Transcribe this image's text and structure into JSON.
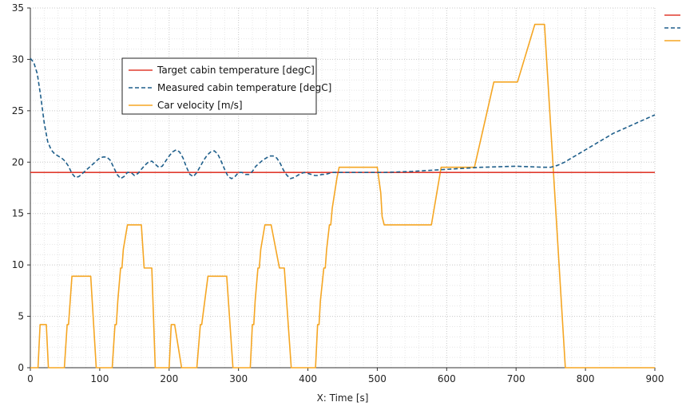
{
  "chart_data": {
    "type": "line",
    "title": "",
    "xlabel": "X: Time [s]",
    "ylabel": "",
    "xlim": [
      0,
      900
    ],
    "ylim": [
      0,
      35
    ],
    "xticks": [
      0,
      100,
      200,
      300,
      400,
      500,
      600,
      700,
      800,
      900
    ],
    "yticks": [
      0,
      5,
      10,
      15,
      20,
      25,
      30,
      35
    ],
    "grid": true,
    "legend_position": "upper-left",
    "series": [
      {
        "name": "Target cabin temperature [degC]",
        "color": "#e03b2e",
        "dash": "solid",
        "x": [
          0,
          900
        ],
        "y": [
          19,
          19
        ]
      },
      {
        "name": "Measured cabin temperature [degC]",
        "color": "#1f5f8b",
        "dash": "dashed",
        "x": [
          0,
          5,
          10,
          15,
          20,
          25,
          30,
          35,
          40,
          45,
          50,
          55,
          60,
          65,
          70,
          75,
          80,
          85,
          90,
          95,
          100,
          105,
          110,
          115,
          120,
          125,
          130,
          135,
          140,
          145,
          150,
          155,
          160,
          165,
          170,
          175,
          180,
          185,
          190,
          195,
          200,
          205,
          210,
          215,
          220,
          225,
          230,
          235,
          240,
          245,
          250,
          255,
          260,
          265,
          270,
          275,
          280,
          285,
          290,
          295,
          300,
          305,
          310,
          315,
          320,
          325,
          330,
          335,
          340,
          345,
          350,
          355,
          360,
          365,
          370,
          375,
          380,
          385,
          390,
          395,
          400,
          405,
          410,
          415,
          420,
          425,
          430,
          435,
          440,
          445,
          450,
          460,
          470,
          480,
          490,
          500,
          510,
          550,
          600,
          650,
          700,
          740,
          750,
          760,
          770,
          780,
          790,
          800,
          810,
          820,
          830,
          840,
          850,
          860,
          870,
          880,
          890,
          900
        ],
        "y": [
          30.1,
          29.7,
          28.6,
          26.4,
          23.8,
          22.0,
          21.2,
          20.8,
          20.6,
          20.4,
          20.1,
          19.6,
          18.9,
          18.5,
          18.6,
          18.9,
          19.2,
          19.5,
          19.8,
          20.1,
          20.4,
          20.5,
          20.5,
          20.2,
          19.5,
          18.8,
          18.4,
          18.6,
          19.0,
          19.0,
          18.7,
          18.9,
          19.3,
          19.7,
          20.0,
          20.1,
          19.8,
          19.5,
          19.6,
          20.1,
          20.6,
          21.0,
          21.2,
          21.0,
          20.4,
          19.5,
          18.8,
          18.6,
          19.0,
          19.6,
          20.2,
          20.7,
          21.0,
          21.1,
          20.8,
          20.1,
          19.3,
          18.6,
          18.4,
          18.6,
          19.0,
          19.0,
          18.8,
          18.8,
          19.1,
          19.6,
          19.9,
          20.2,
          20.4,
          20.6,
          20.6,
          20.4,
          19.9,
          19.2,
          18.7,
          18.4,
          18.5,
          18.7,
          18.9,
          19.0,
          18.9,
          18.8,
          18.7,
          18.7,
          18.8,
          18.8,
          18.9,
          19.0,
          19.0,
          19.0,
          19.0,
          19.0,
          19.0,
          19.0,
          19.0,
          19.0,
          19.0,
          19.1,
          19.3,
          19.5,
          19.6,
          19.5,
          19.5,
          19.7,
          20.0,
          20.4,
          20.8,
          21.2,
          21.6,
          22.0,
          22.4,
          22.8,
          23.1,
          23.4,
          23.7,
          24.0,
          24.3,
          24.6
        ]
      },
      {
        "name": "Car velocity [m/s]",
        "color": "#f5a623",
        "dash": "solid",
        "x": [
          0,
          11,
          14,
          23,
          26,
          49,
          53,
          55,
          60,
          87,
          95,
          118,
          122,
          124,
          126,
          130,
          132,
          134,
          140,
          142,
          144,
          147,
          160,
          164,
          167,
          175,
          180,
          200,
          203,
          206,
          208,
          218,
          222,
          240,
          245,
          247,
          256,
          283,
          292,
          317,
          320,
          322,
          324,
          328,
          330,
          332,
          338,
          342,
          344,
          347,
          359,
          363,
          366,
          376,
          382,
          411,
          414,
          416,
          418,
          423,
          425,
          427,
          431,
          433,
          435,
          442,
          445,
          447,
          452,
          500,
          505,
          507,
          510,
          578,
          592,
          640,
          668,
          702,
          727,
          741,
          771,
          900
        ],
        "y": [
          0,
          0,
          4.2,
          4.2,
          0,
          0,
          4.2,
          4.2,
          8.9,
          8.9,
          0,
          0,
          4.2,
          4.2,
          6.5,
          9.7,
          9.7,
          11.5,
          13.9,
          13.9,
          13.9,
          13.9,
          13.9,
          9.7,
          9.7,
          9.7,
          0,
          0,
          4.2,
          4.2,
          4.2,
          0,
          0,
          0,
          4.2,
          4.2,
          8.9,
          8.9,
          0,
          0,
          4.2,
          4.2,
          6.5,
          9.7,
          9.7,
          11.5,
          13.9,
          13.9,
          13.9,
          13.9,
          9.7,
          9.7,
          9.7,
          0,
          0,
          0,
          4.2,
          4.2,
          6.5,
          9.7,
          9.7,
          11.5,
          13.9,
          13.9,
          15.5,
          18.5,
          19.5,
          19.5,
          19.5,
          19.5,
          17.0,
          14.7,
          13.9,
          13.9,
          19.5,
          19.5,
          27.8,
          27.8,
          33.4,
          33.4,
          0,
          0
        ]
      }
    ]
  }
}
